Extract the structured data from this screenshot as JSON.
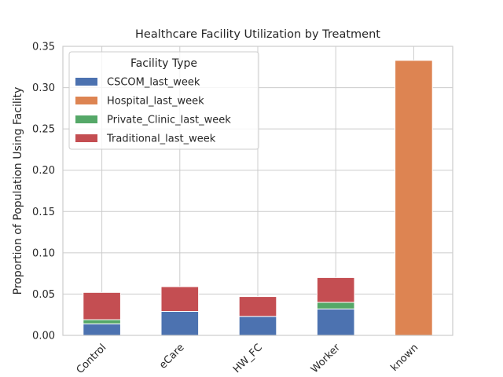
{
  "chart_data": {
    "type": "bar",
    "stacked": true,
    "title": "Healthcare Facility Utilization by Treatment",
    "xlabel": "",
    "ylabel": "Proportion of Population Using Facility",
    "ylim": [
      0,
      0.35
    ],
    "yticks": [
      "0.00",
      "0.05",
      "0.10",
      "0.15",
      "0.20",
      "0.25",
      "0.30",
      "0.35"
    ],
    "grid": true,
    "categories": [
      "Control",
      "eCare",
      "HW_FC",
      "Worker",
      "known"
    ],
    "legend": {
      "title": "Facility Type",
      "placement": "top-left"
    },
    "series": [
      {
        "name": "CSCOM_last_week",
        "color": "#4c72b0",
        "values": [
          0.014,
          0.029,
          0.023,
          0.032,
          0.0
        ]
      },
      {
        "name": "Hospital_last_week",
        "color": "#dd8452",
        "values": [
          0.0,
          0.0,
          0.0,
          0.0,
          0.333
        ]
      },
      {
        "name": "Private_Clinic_last_week",
        "color": "#55a868",
        "values": [
          0.005,
          0.0,
          0.0,
          0.008,
          0.0
        ]
      },
      {
        "name": "Traditional_last_week",
        "color": "#c44e52",
        "values": [
          0.033,
          0.03,
          0.024,
          0.03,
          0.0
        ]
      }
    ]
  }
}
